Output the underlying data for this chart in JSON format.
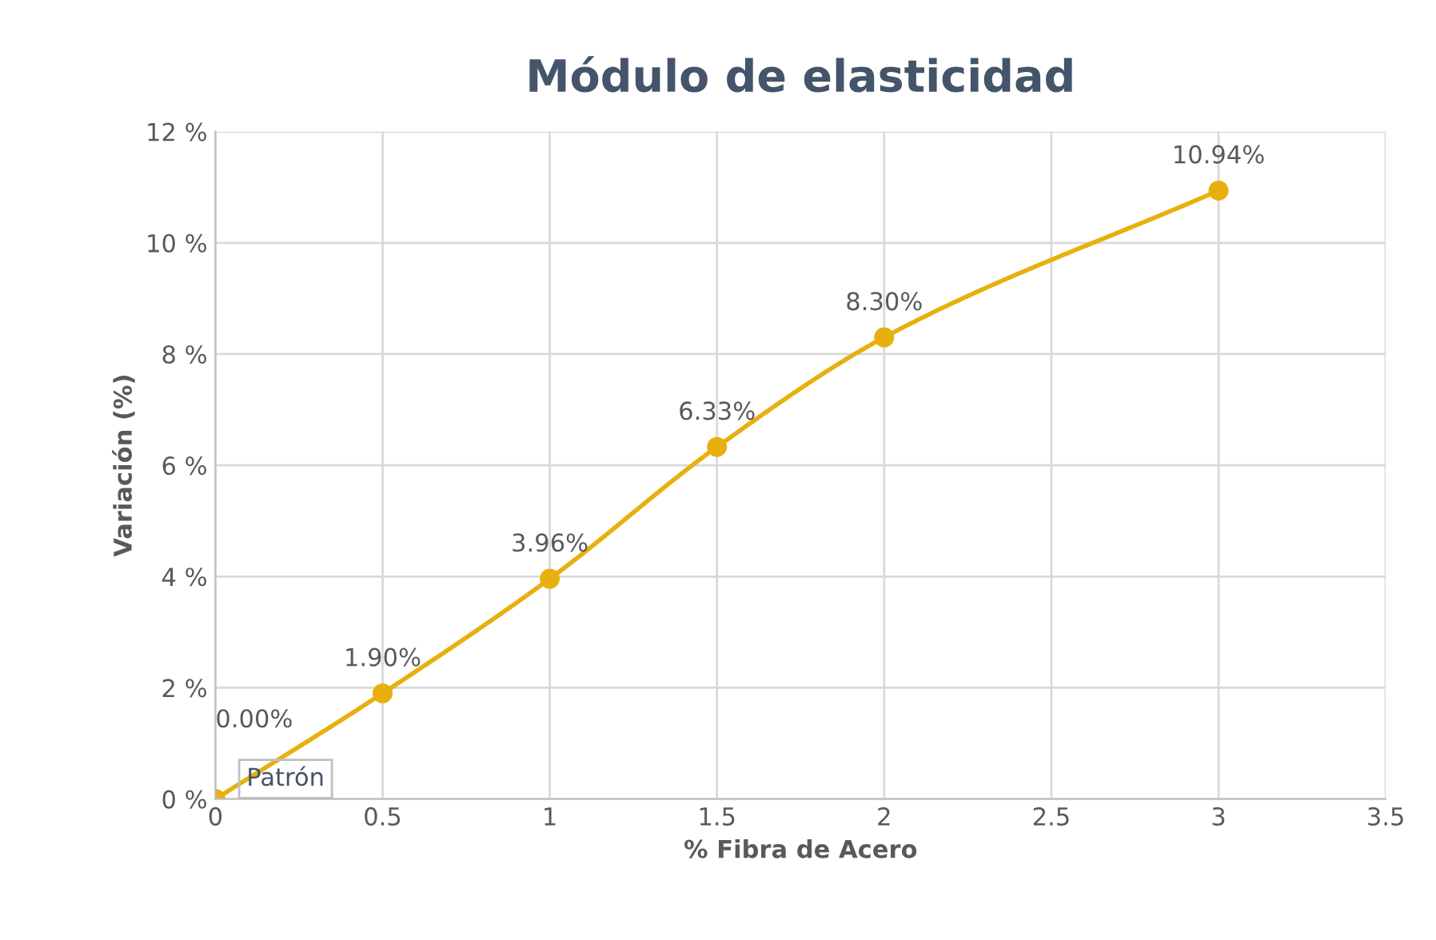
{
  "chart_data": {
    "type": "line",
    "title": "Módulo de elasticidad",
    "xlabel": "% Fibra de Acero",
    "ylabel": "Variación (%)",
    "x": [
      0,
      0.5,
      1,
      1.5,
      2,
      3
    ],
    "series": [
      {
        "color": "#e8b00e",
        "values": [
          0,
          1.9,
          3.96,
          6.33,
          8.3,
          10.94
        ],
        "value_labels": [
          "0.00%",
          "1.90%",
          "3.96%",
          "6.33%",
          "8.30%",
          "10.94%"
        ]
      }
    ],
    "xlim": [
      0,
      3.5
    ],
    "xticks": [
      0,
      0.5,
      1,
      1.5,
      2,
      2.5,
      3,
      3.5
    ],
    "ylim": [
      0,
      12
    ],
    "yticks": [
      {
        "value": 0,
        "label": "0 %"
      },
      {
        "value": 2,
        "label": "2 %"
      },
      {
        "value": 4,
        "label": "4 %"
      },
      {
        "value": 6,
        "label": "6 %"
      },
      {
        "value": 8,
        "label": "8 %"
      },
      {
        "value": 10,
        "label": "10 %"
      },
      {
        "value": 12,
        "label": "12 %"
      }
    ],
    "grid": true,
    "marker": "circle",
    "line_style": "solid",
    "legend": false,
    "annotations": [
      {
        "text": "Patrón",
        "x": 0,
        "y": 0
      }
    ]
  }
}
